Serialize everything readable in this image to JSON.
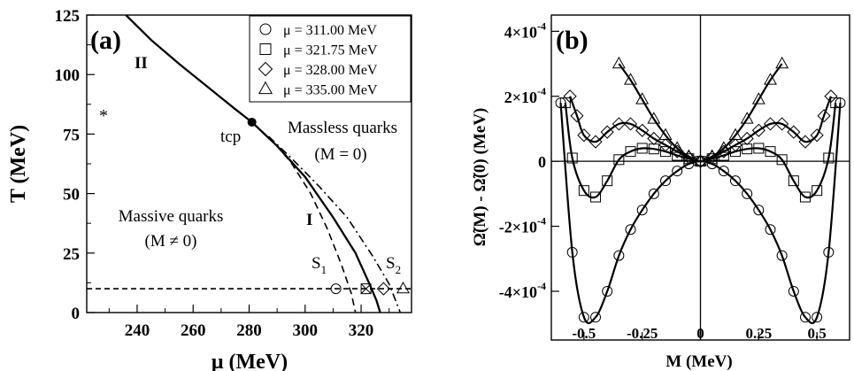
{
  "chart_data": [
    {
      "type": "line",
      "panel": "(a)",
      "xlabel": "μ (MeV)",
      "ylabel": "T (MeV)",
      "xlim": [
        222,
        338
      ],
      "ylim": [
        0,
        125
      ],
      "xticks": [
        240,
        260,
        280,
        300,
        320
      ],
      "yticks": [
        0,
        25,
        50,
        75,
        100,
        125
      ],
      "series": [
        {
          "name": "II",
          "style": "solid",
          "x": [
            236,
            245,
            255,
            265,
            275,
            281
          ],
          "y": [
            125,
            114.5,
            104.5,
            95,
            85.5,
            80
          ]
        },
        {
          "name": "I",
          "style": "solid",
          "x": [
            281,
            290,
            300,
            310,
            318,
            323,
            325.5,
            326.8
          ],
          "y": [
            80,
            70,
            57,
            40,
            25,
            12,
            5,
            0
          ]
        },
        {
          "name": "S1",
          "style": "dash",
          "x": [
            287,
            295,
            302,
            308,
            313,
            316.5,
            318
          ],
          "y": [
            74,
            63,
            50,
            35,
            20,
            8,
            0
          ]
        },
        {
          "name": "S2",
          "style": "dashdot",
          "x": [
            287,
            295,
            305,
            315,
            324,
            330,
            334
          ],
          "y": [
            74,
            65,
            53,
            40,
            24,
            12,
            0
          ]
        },
        {
          "name": "T = 10",
          "style": "dash-horizontal",
          "x": [
            222,
            338
          ],
          "y": [
            10,
            10
          ]
        }
      ],
      "points": {
        "tcp": {
          "x": 281,
          "y": 80
        },
        "star": {
          "x": 232,
          "y": 85
        },
        "markers": [
          {
            "symbol": "circle",
            "x": 311,
            "y": 10
          },
          {
            "symbol": "square",
            "x": 321.75,
            "y": 10
          },
          {
            "symbol": "diamond",
            "x": 328,
            "y": 10
          },
          {
            "symbol": "triangle",
            "x": 335,
            "y": 10
          }
        ]
      },
      "legend": {
        "placement": "top-right",
        "entries": [
          {
            "symbol": "circle",
            "label": "μ = 311.00 MeV"
          },
          {
            "symbol": "square",
            "label": "μ = 321.75 MeV"
          },
          {
            "symbol": "diamond",
            "label": "μ = 328.00 MeV"
          },
          {
            "symbol": "triangle",
            "label": "μ = 335.00 MeV"
          }
        ]
      },
      "annotations": {
        "panel_label": "(a)",
        "II": "II",
        "I": "I",
        "tcp": "tcp",
        "star": "*",
        "massless_1": "Massless quarks",
        "massless_2": "(M = 0)",
        "massive_1": "Massive quarks",
        "massive_2": "(M ≠ 0)",
        "S1": "S",
        "S1_sub": "1",
        "S2": "S",
        "S2_sub": "2"
      }
    },
    {
      "type": "line",
      "panel": "(b)",
      "xlabel": "M (MeV)",
      "ylabel": "Ω̃(M) - Ω̃(0) (MeV)",
      "xlim": [
        -0.64,
        0.64
      ],
      "ylim": [
        -0.00055,
        0.00045
      ],
      "xticks": [
        -0.5,
        -0.25,
        0,
        0.25,
        0.5
      ],
      "xtick_labels": [
        "-0.5",
        "-0.25",
        "0",
        "0.25",
        "0.5"
      ],
      "yticks": [
        -0.0004,
        -0.0002,
        0,
        0.0002,
        0.0004
      ],
      "ytick_labels": [
        {
          "mant": "-4×10",
          "exp": "-4"
        },
        {
          "mant": "-2×10",
          "exp": "-4"
        },
        {
          "mant": "0",
          "exp": ""
        },
        {
          "mant": "2×10",
          "exp": "-4"
        },
        {
          "mant": "4×10",
          "exp": "-4"
        }
      ],
      "series": [
        {
          "name": "μ = 311.00 MeV",
          "symbol": "circle",
          "x": [
            0,
            0.05,
            0.1,
            0.15,
            0.2,
            0.25,
            0.3,
            0.35,
            0.4,
            0.45,
            0.5,
            0.55,
            0.6
          ],
          "y": [
            0,
            -8e-06,
            -3e-05,
            -6e-05,
            -0.0001,
            -0.00015,
            -0.00021,
            -0.00029,
            -0.0004,
            -0.00048,
            -0.00048,
            -0.00028,
            0.00018
          ]
        },
        {
          "name": "μ = 321.75 MeV",
          "symbol": "square",
          "x": [
            0,
            0.05,
            0.1,
            0.15,
            0.2,
            0.25,
            0.3,
            0.35,
            0.4,
            0.45,
            0.5,
            0.55,
            0.58
          ],
          "y": [
            0,
            8e-06,
            1.8e-05,
            3e-05,
            3.8e-05,
            4e-05,
            3e-05,
            5e-06,
            -6e-05,
            -0.00011,
            -9e-05,
            1e-05,
            0.00018
          ]
        },
        {
          "name": "μ = 328.00 MeV",
          "symbol": "diamond",
          "x": [
            0,
            0.05,
            0.1,
            0.15,
            0.2,
            0.25,
            0.3,
            0.35,
            0.4,
            0.45,
            0.5,
            0.53,
            0.56
          ],
          "y": [
            0,
            1.2e-05,
            3e-05,
            5e-05,
            7e-05,
            9.5e-05,
            0.000115,
            0.000115,
            9e-05,
            6e-05,
            8e-05,
            0.00014,
            0.0002
          ]
        },
        {
          "name": "μ = 335.00 MeV",
          "symbol": "triangle",
          "x": [
            0,
            0.05,
            0.1,
            0.15,
            0.2,
            0.25,
            0.3,
            0.35
          ],
          "y": [
            0,
            1.5e-05,
            4e-05,
            8e-05,
            0.00013,
            0.00019,
            0.00025,
            0.0003
          ]
        }
      ],
      "annotations": {
        "panel_label": "(b)"
      }
    }
  ]
}
